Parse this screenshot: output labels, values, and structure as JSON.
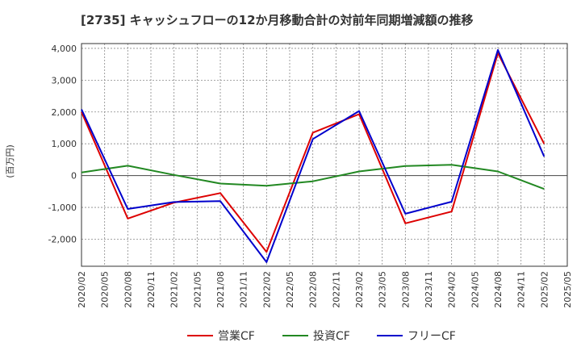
{
  "chart_data": {
    "type": "line",
    "title": "[2735]  キャッシュフローの12か月移動合計の対前年同期増減額の推移",
    "ylabel": "(百万円)",
    "xlabel": "",
    "ylim": [
      -2850,
      4150
    ],
    "yticks": [
      4000,
      3000,
      2000,
      1000,
      0,
      -1000,
      -2000
    ],
    "ytick_labels": [
      "4,000",
      "3,000",
      "2,000",
      "1,000",
      "0",
      "-1,000",
      "-2,000"
    ],
    "categories": [
      "2020/02",
      "2020/05",
      "2020/08",
      "2020/11",
      "2021/02",
      "2021/05",
      "2021/08",
      "2021/11",
      "2022/02",
      "2022/05",
      "2022/08",
      "2022/11",
      "2023/02",
      "2023/05",
      "2023/08",
      "2023/11",
      "2024/02",
      "2024/05",
      "2024/08",
      "2024/11",
      "2025/02",
      "2025/05"
    ],
    "grid": true,
    "legend_position": "bottom",
    "series": [
      {
        "name": "営業CF",
        "color": "#dd0000",
        "x": [
          "2020/02",
          "2020/08",
          "2021/02",
          "2021/08",
          "2022/02",
          "2022/08",
          "2023/02",
          "2023/08",
          "2024/02",
          "2024/08",
          "2025/02"
        ],
        "values": [
          2000,
          -1350,
          -850,
          -550,
          -2400,
          1350,
          1930,
          -1500,
          -1130,
          3850,
          1000
        ]
      },
      {
        "name": "投資CF",
        "color": "#228822",
        "x": [
          "2020/02",
          "2020/08",
          "2021/02",
          "2021/08",
          "2022/02",
          "2022/08",
          "2023/02",
          "2023/08",
          "2024/02",
          "2024/08",
          "2025/02"
        ],
        "values": [
          100,
          310,
          20,
          -250,
          -320,
          -180,
          130,
          300,
          340,
          130,
          -420
        ]
      },
      {
        "name": "フリーCF",
        "color": "#0000cc",
        "x": [
          "2020/02",
          "2020/08",
          "2021/02",
          "2021/08",
          "2022/02",
          "2022/08",
          "2023/02",
          "2023/08",
          "2024/02",
          "2024/08",
          "2025/02"
        ],
        "values": [
          2080,
          -1050,
          -830,
          -800,
          -2720,
          1150,
          2030,
          -1200,
          -820,
          3950,
          600
        ]
      }
    ]
  }
}
